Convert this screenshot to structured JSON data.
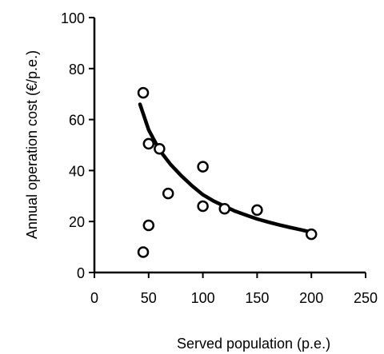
{
  "chart_data": {
    "type": "scatter",
    "xlabel": "Served population (p.e.)",
    "ylabel": "Annual operation cost (€/p.e.)",
    "xlim": [
      0,
      250
    ],
    "ylim": [
      0,
      100
    ],
    "x_ticks": [
      0,
      50,
      100,
      150,
      200,
      250
    ],
    "y_ticks": [
      0,
      20,
      40,
      60,
      80,
      100
    ],
    "grid": false,
    "legend": "none",
    "points": [
      {
        "x": 45,
        "y": 70.5
      },
      {
        "x": 45,
        "y": 8
      },
      {
        "x": 50,
        "y": 50.5
      },
      {
        "x": 50,
        "y": 18.5
      },
      {
        "x": 60,
        "y": 48.5
      },
      {
        "x": 68,
        "y": 31
      },
      {
        "x": 100,
        "y": 41.5
      },
      {
        "x": 100,
        "y": 26
      },
      {
        "x": 120,
        "y": 25
      },
      {
        "x": 150,
        "y": 24.5
      },
      {
        "x": 200,
        "y": 15
      }
    ],
    "trendline": {
      "x": [
        42,
        50,
        60,
        70,
        80,
        90,
        100,
        110,
        120,
        130,
        140,
        150,
        160,
        170,
        180,
        190,
        200
      ],
      "y": [
        66,
        56,
        48,
        42.5,
        38,
        34,
        30.5,
        28,
        26,
        24,
        22.5,
        21,
        19.8,
        18.7,
        17.7,
        16.8,
        15.8
      ]
    },
    "colors": {
      "axis": "#000000",
      "marker_stroke": "#000000",
      "marker_fill": "#ffffff",
      "trendline": "#000000"
    }
  }
}
